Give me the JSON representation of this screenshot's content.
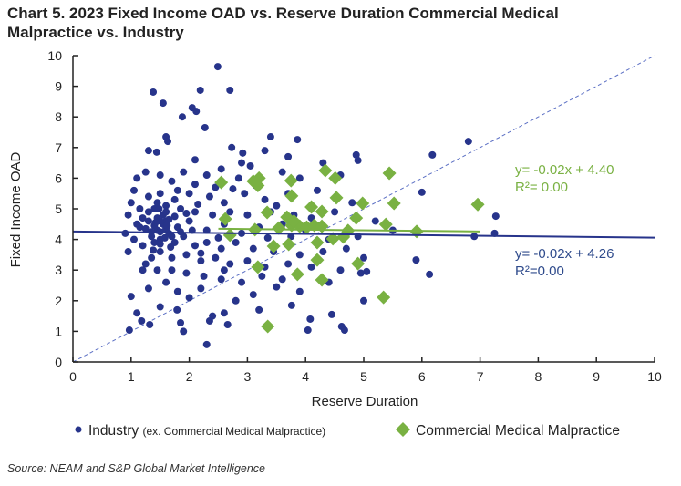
{
  "chart_data": {
    "type": "scatter",
    "title": "Chart 5. 2023 Fixed Income OAD vs. Reserve Duration Commercial Medical Malpractice vs. Industry",
    "xlabel": "Reserve Duration",
    "ylabel": "Fixed Income OAD",
    "xlim": [
      0,
      10
    ],
    "ylim": [
      0,
      10
    ],
    "xticks": [
      "0",
      "1",
      "2",
      "3",
      "4",
      "5",
      "6",
      "7",
      "8",
      "9",
      "10"
    ],
    "yticks": [
      "0",
      "1",
      "2",
      "3",
      "4",
      "5",
      "6",
      "7",
      "8",
      "9",
      "10"
    ],
    "grid": false,
    "legend_placement": "bottom",
    "reference_line": {
      "style": "dashed",
      "equation": "y = x",
      "color": "#5b6fc4"
    },
    "colors": {
      "industry": "#27348b",
      "cmm": "#79b142",
      "industry_text": "#2f4b8c",
      "cmm_text": "#79b142"
    },
    "series": [
      {
        "name": "Industry",
        "name_note": "(ex. Commercial Medical Malpractice)",
        "marker": "circle",
        "trendline": {
          "slope": -0.02,
          "intercept": 4.26,
          "equation": "y= -0.02x + 4.26",
          "r2": "R²=0.00",
          "x_range": [
            0,
            10
          ]
        },
        "points": [
          [
            2.49,
            9.64
          ],
          [
            1.38,
            8.81
          ],
          [
            2.19,
            8.87
          ],
          [
            2.7,
            8.87
          ],
          [
            1.55,
            8.45
          ],
          [
            2.05,
            8.3
          ],
          [
            2.12,
            8.18
          ],
          [
            1.88,
            8.0
          ],
          [
            2.27,
            7.65
          ],
          [
            1.6,
            7.35
          ],
          [
            1.63,
            7.2
          ],
          [
            3.4,
            7.35
          ],
          [
            3.86,
            7.26
          ],
          [
            2.73,
            7.0
          ],
          [
            1.3,
            6.9
          ],
          [
            1.44,
            6.85
          ],
          [
            2.92,
            6.82
          ],
          [
            3.3,
            6.9
          ],
          [
            6.8,
            7.2
          ],
          [
            6.18,
            6.76
          ],
          [
            4.87,
            6.76
          ],
          [
            4.9,
            6.58
          ],
          [
            6.0,
            5.54
          ],
          [
            6.13,
            2.86
          ],
          [
            7.25,
            4.2
          ],
          [
            7.27,
            4.76
          ],
          [
            5.9,
            3.33
          ],
          [
            2.3,
            0.57
          ],
          [
            0.97,
            1.04
          ],
          [
            2.35,
            1.34
          ],
          [
            2.4,
            1.5
          ],
          [
            1.85,
            1.28
          ],
          [
            1.32,
            1.22
          ],
          [
            1.18,
            1.34
          ],
          [
            1.79,
            1.7
          ],
          [
            2.66,
            1.22
          ],
          [
            3.76,
            1.85
          ],
          [
            4.04,
            1.04
          ],
          [
            4.62,
            1.16
          ],
          [
            4.67,
            1.04
          ],
          [
            4.08,
            1.4
          ],
          [
            1.0,
            2.14
          ],
          [
            5.0,
            2.0
          ],
          [
            6.9,
            4.1
          ],
          [
            5.05,
            2.95
          ],
          [
            4.95,
            2.9
          ],
          [
            4.4,
            2.6
          ],
          [
            3.5,
            2.45
          ],
          [
            3.1,
            2.2
          ],
          [
            2.8,
            2.0
          ],
          [
            2.2,
            2.4
          ],
          [
            1.6,
            2.6
          ],
          [
            1.3,
            2.4
          ],
          [
            1.5,
            1.8
          ],
          [
            1.2,
            3.0
          ],
          [
            0.95,
            3.6
          ],
          [
            0.9,
            4.2
          ],
          [
            0.95,
            4.8
          ],
          [
            1.0,
            5.2
          ],
          [
            1.05,
            5.6
          ],
          [
            1.1,
            6.0
          ],
          [
            1.25,
            6.2
          ],
          [
            1.5,
            6.1
          ],
          [
            1.7,
            5.9
          ],
          [
            1.9,
            6.2
          ],
          [
            2.1,
            5.8
          ],
          [
            2.3,
            6.1
          ],
          [
            2.55,
            6.3
          ],
          [
            2.85,
            6.0
          ],
          [
            3.05,
            6.4
          ],
          [
            3.6,
            6.2
          ],
          [
            3.9,
            6.0
          ],
          [
            4.3,
            6.5
          ],
          [
            4.6,
            6.1
          ],
          [
            4.2,
            5.6
          ],
          [
            3.7,
            5.5
          ],
          [
            3.3,
            5.3
          ],
          [
            2.95,
            5.5
          ],
          [
            2.6,
            5.2
          ],
          [
            2.35,
            5.4
          ],
          [
            2.0,
            5.5
          ],
          [
            1.75,
            5.3
          ],
          [
            1.5,
            5.5
          ],
          [
            1.3,
            5.4
          ],
          [
            1.15,
            5.0
          ],
          [
            1.4,
            5.0
          ],
          [
            1.6,
            4.9
          ],
          [
            1.85,
            5.0
          ],
          [
            2.1,
            4.9
          ],
          [
            2.4,
            4.8
          ],
          [
            2.7,
            4.9
          ],
          [
            3.0,
            4.8
          ],
          [
            3.4,
            4.9
          ],
          [
            3.8,
            4.8
          ],
          [
            4.1,
            4.7
          ],
          [
            4.5,
            4.9
          ],
          [
            4.8,
            5.2
          ],
          [
            5.2,
            4.6
          ],
          [
            5.5,
            4.3
          ],
          [
            4.9,
            4.1
          ],
          [
            4.4,
            4.0
          ],
          [
            4.0,
            4.3
          ],
          [
            3.6,
            4.5
          ],
          [
            3.2,
            4.4
          ],
          [
            2.9,
            4.2
          ],
          [
            2.6,
            4.5
          ],
          [
            2.3,
            4.3
          ],
          [
            2.0,
            4.6
          ],
          [
            1.8,
            4.4
          ],
          [
            1.6,
            4.6
          ],
          [
            1.45,
            4.3
          ],
          [
            1.3,
            4.6
          ],
          [
            1.15,
            4.4
          ],
          [
            1.05,
            4.0
          ],
          [
            1.2,
            3.8
          ],
          [
            1.35,
            4.1
          ],
          [
            1.5,
            4.0
          ],
          [
            1.65,
            4.2
          ],
          [
            1.75,
            3.9
          ],
          [
            1.9,
            4.1
          ],
          [
            2.1,
            3.8
          ],
          [
            2.3,
            3.9
          ],
          [
            2.55,
            3.7
          ],
          [
            2.8,
            3.9
          ],
          [
            3.1,
            3.7
          ],
          [
            3.45,
            3.6
          ],
          [
            3.9,
            3.5
          ],
          [
            4.3,
            3.6
          ],
          [
            4.7,
            3.7
          ],
          [
            5.0,
            3.4
          ],
          [
            4.6,
            3.0
          ],
          [
            4.1,
            3.1
          ],
          [
            3.7,
            3.2
          ],
          [
            3.3,
            3.1
          ],
          [
            3.0,
            3.3
          ],
          [
            2.7,
            3.2
          ],
          [
            2.45,
            3.4
          ],
          [
            2.2,
            3.3
          ],
          [
            1.95,
            3.5
          ],
          [
            1.7,
            3.4
          ],
          [
            1.5,
            3.6
          ],
          [
            1.35,
            3.4
          ],
          [
            1.25,
            3.2
          ],
          [
            1.45,
            3.0
          ],
          [
            1.7,
            3.0
          ],
          [
            1.95,
            2.9
          ],
          [
            2.25,
            2.8
          ],
          [
            2.55,
            2.7
          ],
          [
            2.9,
            2.6
          ],
          [
            3.25,
            2.8
          ],
          [
            3.6,
            2.7
          ],
          [
            1.4,
            4.45
          ],
          [
            1.5,
            4.25
          ],
          [
            1.55,
            4.5
          ],
          [
            1.45,
            4.7
          ],
          [
            1.6,
            4.35
          ],
          [
            1.35,
            4.25
          ],
          [
            1.5,
            3.85
          ],
          [
            1.65,
            4.65
          ],
          [
            1.4,
            3.9
          ],
          [
            1.55,
            4.8
          ],
          [
            1.7,
            4.1
          ],
          [
            1.3,
            4.9
          ],
          [
            1.25,
            4.35
          ],
          [
            1.45,
            5.2
          ],
          [
            1.6,
            5.1
          ],
          [
            1.75,
            4.75
          ],
          [
            1.85,
            4.25
          ],
          [
            1.95,
            4.85
          ],
          [
            2.05,
            4.3
          ],
          [
            2.15,
            5.15
          ],
          [
            1.2,
            4.7
          ],
          [
            1.1,
            4.5
          ],
          [
            1.5,
            4.6
          ],
          [
            1.58,
            4.05
          ],
          [
            1.42,
            4.55
          ],
          [
            1.62,
            4.45
          ],
          [
            1.48,
            5.0
          ],
          [
            1.38,
            3.65
          ],
          [
            1.68,
            3.75
          ],
          [
            1.8,
            5.6
          ],
          [
            2.45,
            5.7
          ],
          [
            2.75,
            5.65
          ],
          [
            3.15,
            5.75
          ],
          [
            3.5,
            5.1
          ],
          [
            2.5,
            4.05
          ],
          [
            2.2,
            3.55
          ],
          [
            2.6,
            3.0
          ],
          [
            3.35,
            4.05
          ],
          [
            3.75,
            4.1
          ],
          [
            4.25,
            4.45
          ],
          [
            2.0,
            2.1
          ],
          [
            1.1,
            1.6
          ],
          [
            2.6,
            1.6
          ],
          [
            3.2,
            1.7
          ],
          [
            4.45,
            1.55
          ],
          [
            1.9,
            1.0
          ],
          [
            1.8,
            2.3
          ],
          [
            3.9,
            2.3
          ],
          [
            2.1,
            6.6
          ],
          [
            2.9,
            6.5
          ],
          [
            3.7,
            6.7
          ]
        ]
      },
      {
        "name": "Commercial Medical Malpractice",
        "marker": "diamond",
        "trendline": {
          "slope": -0.02,
          "intercept": 4.4,
          "equation": "y= -0.02x + 4.40",
          "r2": "R²= 0.00",
          "x_range": [
            2.5,
            7.0
          ]
        },
        "points": [
          [
            2.55,
            5.86
          ],
          [
            3.1,
            5.9
          ],
          [
            3.2,
            6.0
          ],
          [
            3.18,
            5.76
          ],
          [
            4.34,
            6.25
          ],
          [
            4.51,
            6.0
          ],
          [
            5.44,
            6.16
          ],
          [
            3.75,
            5.92
          ],
          [
            3.76,
            5.42
          ],
          [
            4.53,
            5.36
          ],
          [
            4.98,
            5.18
          ],
          [
            5.52,
            5.18
          ],
          [
            4.1,
            5.06
          ],
          [
            4.28,
            4.91
          ],
          [
            3.34,
            4.88
          ],
          [
            4.87,
            4.7
          ],
          [
            2.62,
            4.67
          ],
          [
            3.68,
            4.73
          ],
          [
            5.38,
            4.49
          ],
          [
            5.91,
            4.26
          ],
          [
            2.7,
            4.14
          ],
          [
            3.13,
            4.32
          ],
          [
            3.54,
            4.37
          ],
          [
            3.76,
            4.46
          ],
          [
            3.9,
            4.43
          ],
          [
            4.02,
            4.4
          ],
          [
            4.15,
            4.46
          ],
          [
            4.28,
            4.43
          ],
          [
            3.45,
            3.78
          ],
          [
            3.71,
            3.84
          ],
          [
            4.2,
            3.9
          ],
          [
            4.47,
            4.02
          ],
          [
            4.65,
            4.08
          ],
          [
            4.73,
            4.29
          ],
          [
            4.2,
            3.33
          ],
          [
            4.9,
            3.21
          ],
          [
            3.18,
            3.1
          ],
          [
            3.86,
            2.86
          ],
          [
            4.28,
            2.68
          ],
          [
            5.34,
            2.11
          ],
          [
            3.35,
            1.16
          ],
          [
            6.96,
            5.14
          ],
          [
            3.8,
            4.6
          ]
        ]
      }
    ]
  },
  "source": "Source: NEAM and S&P Global Market Intelligence"
}
